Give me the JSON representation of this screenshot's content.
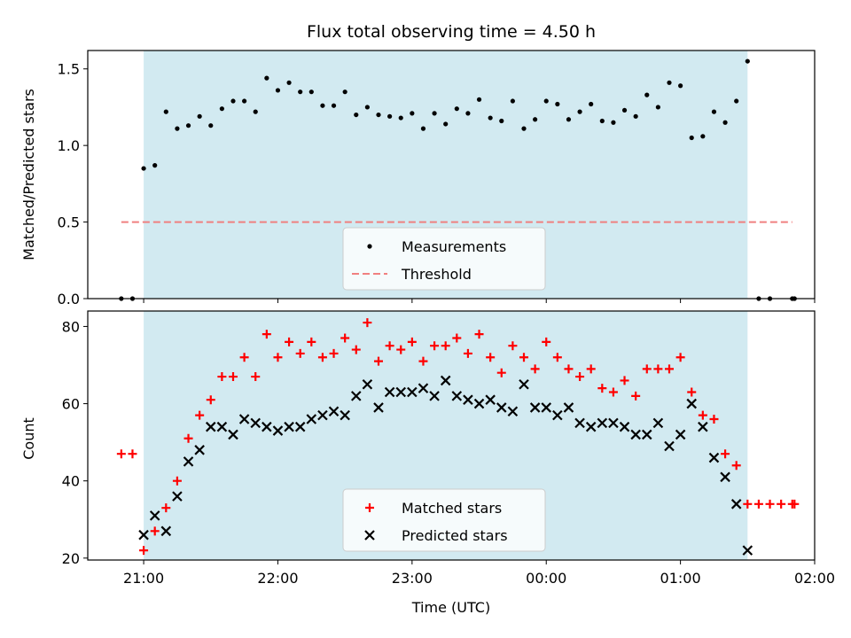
{
  "chart_data": {
    "title": "Flux total observing time = 4.50 h",
    "xlabel": "Time (UTC)",
    "x_tick_labels": [
      "21:00",
      "22:00",
      "23:00",
      "00:00",
      "01:00",
      "02:00"
    ],
    "x_range_minutes": [
      -25,
      300
    ],
    "x_unit": "minutes after 21:00 UTC",
    "observing_window_minutes": [
      0,
      270
    ],
    "window_color": "#add8e6",
    "panels": [
      {
        "type": "scatter",
        "ylabel": "Matched/Predicted stars",
        "ylim": [
          0,
          1.62
        ],
        "y_ticks": [
          0.0,
          0.5,
          1.0,
          1.5
        ],
        "y_tick_labels": [
          "0.0",
          "0.5",
          "1.0",
          "1.5"
        ],
        "legend_position": "lower center",
        "series": [
          {
            "name": "Measurements",
            "marker": "dot",
            "color": "#000000",
            "points": [
              [
                -10,
                0
              ],
              [
                -5,
                0
              ],
              [
                0,
                0.85
              ],
              [
                5,
                0.87
              ],
              [
                10,
                1.22
              ],
              [
                15,
                1.11
              ],
              [
                20,
                1.13
              ],
              [
                25,
                1.19
              ],
              [
                30,
                1.13
              ],
              [
                35,
                1.24
              ],
              [
                40,
                1.29
              ],
              [
                45,
                1.29
              ],
              [
                50,
                1.22
              ],
              [
                55,
                1.44
              ],
              [
                60,
                1.36
              ],
              [
                65,
                1.41
              ],
              [
                70,
                1.35
              ],
              [
                75,
                1.35
              ],
              [
                80,
                1.26
              ],
              [
                85,
                1.26
              ],
              [
                90,
                1.35
              ],
              [
                95,
                1.2
              ],
              [
                100,
                1.25
              ],
              [
                105,
                1.2
              ],
              [
                110,
                1.19
              ],
              [
                115,
                1.18
              ],
              [
                120,
                1.21
              ],
              [
                125,
                1.11
              ],
              [
                130,
                1.21
              ],
              [
                135,
                1.14
              ],
              [
                140,
                1.24
              ],
              [
                145,
                1.21
              ],
              [
                150,
                1.3
              ],
              [
                155,
                1.18
              ],
              [
                160,
                1.16
              ],
              [
                165,
                1.29
              ],
              [
                170,
                1.11
              ],
              [
                175,
                1.17
              ],
              [
                180,
                1.29
              ],
              [
                185,
                1.27
              ],
              [
                190,
                1.17
              ],
              [
                195,
                1.22
              ],
              [
                200,
                1.27
              ],
              [
                205,
                1.16
              ],
              [
                210,
                1.15
              ],
              [
                215,
                1.23
              ],
              [
                220,
                1.19
              ],
              [
                225,
                1.33
              ],
              [
                230,
                1.25
              ],
              [
                235,
                1.41
              ],
              [
                240,
                1.39
              ],
              [
                245,
                1.05
              ],
              [
                250,
                1.06
              ],
              [
                255,
                1.22
              ],
              [
                260,
                1.15
              ],
              [
                265,
                1.29
              ],
              [
                270,
                1.55
              ],
              [
                275,
                0
              ],
              [
                280,
                0
              ],
              [
                290,
                0
              ],
              [
                291,
                0
              ]
            ]
          },
          {
            "name": "Threshold",
            "type": "line",
            "style": "dashed",
            "color": "#f08080",
            "x": [
              -10,
              290
            ],
            "y": [
              0.5,
              0.5
            ]
          }
        ]
      },
      {
        "type": "scatter",
        "ylabel": "Count",
        "ylim": [
          19.5,
          84
        ],
        "y_ticks": [
          20,
          40,
          60,
          80
        ],
        "y_tick_labels": [
          "20",
          "40",
          "60",
          "80"
        ],
        "legend_position": "lower center",
        "series": [
          {
            "name": "Matched stars",
            "marker": "plus",
            "color": "#ff0000",
            "points": [
              [
                -10,
                47
              ],
              [
                -5,
                47
              ],
              [
                0,
                22
              ],
              [
                5,
                27
              ],
              [
                10,
                33
              ],
              [
                15,
                40
              ],
              [
                20,
                51
              ],
              [
                25,
                57
              ],
              [
                30,
                61
              ],
              [
                35,
                67
              ],
              [
                40,
                67
              ],
              [
                45,
                72
              ],
              [
                50,
                67
              ],
              [
                55,
                78
              ],
              [
                60,
                72
              ],
              [
                65,
                76
              ],
              [
                70,
                73
              ],
              [
                75,
                76
              ],
              [
                80,
                72
              ],
              [
                85,
                73
              ],
              [
                90,
                77
              ],
              [
                95,
                74
              ],
              [
                100,
                81
              ],
              [
                105,
                71
              ],
              [
                110,
                75
              ],
              [
                115,
                74
              ],
              [
                120,
                76
              ],
              [
                125,
                71
              ],
              [
                130,
                75
              ],
              [
                135,
                75
              ],
              [
                140,
                77
              ],
              [
                145,
                73
              ],
              [
                150,
                78
              ],
              [
                155,
                72
              ],
              [
                160,
                68
              ],
              [
                165,
                75
              ],
              [
                170,
                72
              ],
              [
                175,
                69
              ],
              [
                180,
                76
              ],
              [
                185,
                72
              ],
              [
                190,
                69
              ],
              [
                195,
                67
              ],
              [
                200,
                69
              ],
              [
                205,
                64
              ],
              [
                210,
                63
              ],
              [
                215,
                66
              ],
              [
                220,
                62
              ],
              [
                225,
                69
              ],
              [
                230,
                69
              ],
              [
                235,
                69
              ],
              [
                240,
                72
              ],
              [
                245,
                63
              ],
              [
                250,
                57
              ],
              [
                255,
                56
              ],
              [
                260,
                47
              ],
              [
                265,
                44
              ],
              [
                270,
                34
              ],
              [
                275,
                34
              ],
              [
                280,
                34
              ],
              [
                285,
                34
              ],
              [
                290,
                34
              ],
              [
                291,
                34
              ]
            ]
          },
          {
            "name": "Predicted stars",
            "marker": "x",
            "color": "#000000",
            "points": [
              [
                0,
                26
              ],
              [
                5,
                31
              ],
              [
                10,
                27
              ],
              [
                15,
                36
              ],
              [
                20,
                45
              ],
              [
                25,
                48
              ],
              [
                30,
                54
              ],
              [
                35,
                54
              ],
              [
                40,
                52
              ],
              [
                45,
                56
              ],
              [
                50,
                55
              ],
              [
                55,
                54
              ],
              [
                60,
                53
              ],
              [
                65,
                54
              ],
              [
                70,
                54
              ],
              [
                75,
                56
              ],
              [
                80,
                57
              ],
              [
                85,
                58
              ],
              [
                90,
                57
              ],
              [
                95,
                62
              ],
              [
                100,
                65
              ],
              [
                105,
                59
              ],
              [
                110,
                63
              ],
              [
                115,
                63
              ],
              [
                120,
                63
              ],
              [
                125,
                64
              ],
              [
                130,
                62
              ],
              [
                135,
                66
              ],
              [
                140,
                62
              ],
              [
                145,
                61
              ],
              [
                150,
                60
              ],
              [
                155,
                61
              ],
              [
                160,
                59
              ],
              [
                165,
                58
              ],
              [
                170,
                65
              ],
              [
                175,
                59
              ],
              [
                180,
                59
              ],
              [
                185,
                57
              ],
              [
                190,
                59
              ],
              [
                195,
                55
              ],
              [
                200,
                54
              ],
              [
                205,
                55
              ],
              [
                210,
                55
              ],
              [
                215,
                54
              ],
              [
                220,
                52
              ],
              [
                225,
                52
              ],
              [
                230,
                55
              ],
              [
                235,
                49
              ],
              [
                240,
                52
              ],
              [
                245,
                60
              ],
              [
                250,
                54
              ],
              [
                255,
                46
              ],
              [
                260,
                41
              ],
              [
                265,
                34
              ],
              [
                270,
                22
              ]
            ]
          }
        ]
      }
    ]
  }
}
